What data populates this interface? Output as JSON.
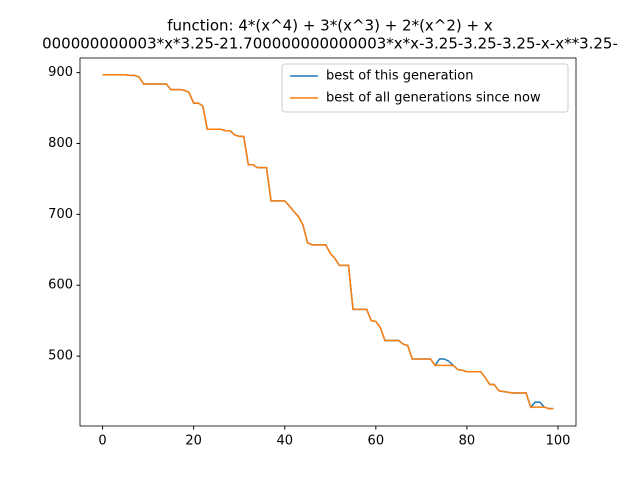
{
  "chart_data": {
    "type": "line",
    "title": [
      "function:  4*(x^4) + 3*(x^3) + 2*(x^2) + x",
      "000000000003*x*3.25-21.700000000000003*x*x-3.25-3.25-3.25-x-x**3.25-"
    ],
    "x": [
      0,
      1,
      2,
      3,
      4,
      5,
      6,
      7,
      8,
      9,
      10,
      11,
      12,
      13,
      14,
      15,
      16,
      17,
      18,
      19,
      20,
      21,
      22,
      23,
      24,
      25,
      26,
      27,
      28,
      29,
      30,
      31,
      32,
      33,
      34,
      35,
      36,
      37,
      38,
      39,
      40,
      41,
      42,
      43,
      44,
      45,
      46,
      47,
      48,
      49,
      50,
      51,
      52,
      53,
      54,
      55,
      56,
      57,
      58,
      59,
      60,
      61,
      62,
      63,
      64,
      65,
      66,
      67,
      68,
      69,
      70,
      71,
      72,
      73,
      74,
      75,
      76,
      77,
      78,
      79,
      80,
      81,
      82,
      83,
      84,
      85,
      86,
      87,
      88,
      89,
      90,
      91,
      92,
      93,
      94,
      95,
      96,
      97,
      98,
      99
    ],
    "series": [
      {
        "name": "best of this generation",
        "color": "#1f77b4",
        "values": [
          897,
          897,
          897,
          897,
          897,
          897,
          896,
          896,
          894,
          884,
          884,
          884,
          884,
          884,
          884,
          876,
          876,
          876,
          875,
          872,
          857,
          857,
          853,
          820,
          820,
          820,
          820,
          818,
          818,
          812,
          810,
          810,
          770,
          770,
          766,
          766,
          766,
          719,
          719,
          719,
          719,
          712,
          704,
          697,
          685,
          660,
          657,
          657,
          657,
          657,
          645,
          638,
          628,
          628,
          628,
          566,
          566,
          566,
          566,
          550,
          549,
          540,
          522,
          522,
          522,
          522,
          517,
          515,
          496,
          496,
          496,
          496,
          496,
          487,
          496,
          496,
          493,
          487,
          481,
          480,
          478,
          478,
          478,
          478,
          470,
          460,
          460,
          451,
          450,
          449,
          448,
          448,
          448,
          448,
          428,
          435,
          435,
          428,
          426,
          426
        ]
      },
      {
        "name": "best of all generations since now",
        "color": "#ff7f0e",
        "values": [
          897,
          897,
          897,
          897,
          897,
          897,
          896,
          896,
          894,
          884,
          884,
          884,
          884,
          884,
          884,
          876,
          876,
          876,
          875,
          872,
          857,
          857,
          853,
          820,
          820,
          820,
          820,
          818,
          818,
          812,
          810,
          810,
          770,
          770,
          766,
          766,
          766,
          719,
          719,
          719,
          719,
          712,
          704,
          697,
          685,
          660,
          657,
          657,
          657,
          657,
          645,
          638,
          628,
          628,
          628,
          566,
          566,
          566,
          566,
          550,
          549,
          540,
          522,
          522,
          522,
          522,
          517,
          515,
          496,
          496,
          496,
          496,
          496,
          487,
          487,
          487,
          487,
          487,
          481,
          480,
          478,
          478,
          478,
          478,
          470,
          460,
          460,
          451,
          450,
          449,
          448,
          448,
          448,
          448,
          428,
          428,
          428,
          428,
          426,
          426
        ]
      }
    ],
    "xlim": [
      -4.95,
      103.95
    ],
    "xticks": [
      0,
      20,
      40,
      60,
      80,
      100
    ],
    "ylim": [
      401.4,
      920.6
    ],
    "yticks": [
      500,
      600,
      700,
      800,
      900
    ],
    "legend": "upper right",
    "grid": false
  }
}
